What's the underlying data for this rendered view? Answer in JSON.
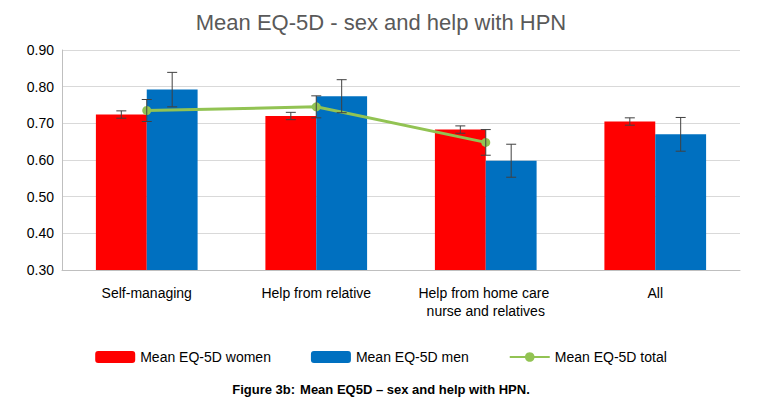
{
  "chart_data": {
    "type": "bar",
    "title": "Mean EQ-5D - sex and help with HPN",
    "caption_label": "Figure 3b:",
    "caption": "Mean EQ5D – sex and help with HPN.",
    "categories": [
      "Self-managing",
      "Help from relative",
      "Help from home care nurse and relatives",
      "All"
    ],
    "series": [
      {
        "name": "Mean EQ-5D women",
        "color": "#ff0000",
        "values": [
          0.724,
          0.72,
          0.683,
          0.705
        ],
        "errors": [
          0.01,
          0.01,
          0.01,
          0.01
        ]
      },
      {
        "name": "Mean EQ-5D men",
        "color": "#0070c0",
        "values": [
          0.792,
          0.774,
          0.598,
          0.67
        ],
        "errors": [
          0.047,
          0.045,
          0.045,
          0.046
        ]
      },
      {
        "name": "Mean EQ-5D total",
        "type": "line",
        "marker": "circle",
        "color": "#92c353",
        "values": [
          0.735,
          0.745,
          0.648,
          null
        ],
        "errors": [
          0.03,
          0.03,
          0.035,
          null
        ]
      }
    ],
    "ylim": [
      0.3,
      0.9
    ],
    "yticks": [
      {
        "value": 0.3,
        "label": "0.30"
      },
      {
        "value": 0.4,
        "label": "0.40"
      },
      {
        "value": 0.5,
        "label": "0.50"
      },
      {
        "value": 0.6,
        "label": "0.60"
      },
      {
        "value": 0.7,
        "label": "0.70"
      },
      {
        "value": 0.8,
        "label": "0.80"
      },
      {
        "value": 0.9,
        "label": "0.90"
      }
    ],
    "grid": true,
    "legend": "bottom"
  }
}
